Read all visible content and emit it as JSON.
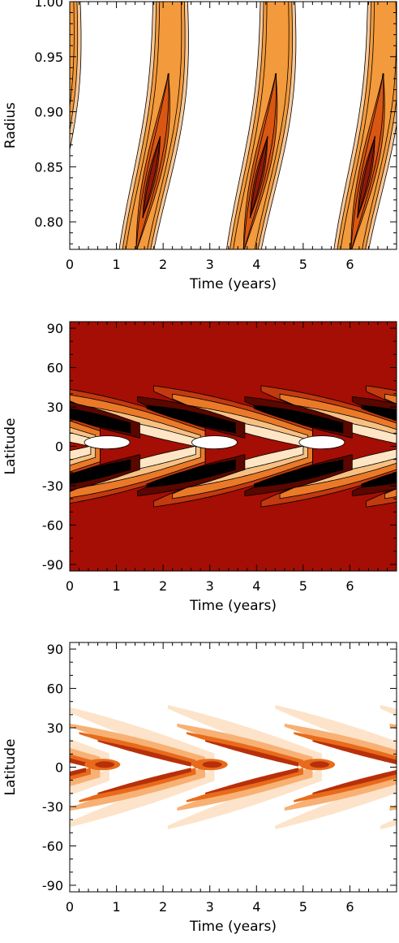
{
  "chart_data": [
    {
      "type": "heatmap",
      "title": "",
      "xlabel": "Time (years)",
      "ylabel": "Radius",
      "xlim": [
        0,
        7
      ],
      "ylim": [
        0.775,
        1.0
      ],
      "xticks": [
        0,
        1,
        2,
        3,
        4,
        5,
        6
      ],
      "yticks": [
        0.8,
        0.85,
        0.9,
        0.95,
        1.0
      ],
      "ytick_labels": [
        "0.80",
        "0.85",
        "0.90",
        "0.95",
        "1.00"
      ],
      "period": 2.3,
      "phases": [
        -0.6,
        1.7,
        4.0,
        6.3
      ],
      "peak_radius": 0.83,
      "background_color": "#ffffff",
      "colors": [
        "#ffffff",
        "#f7c89a",
        "#f39a3c",
        "#d95712",
        "#b3300f",
        "#8e1a0a"
      ],
      "grid": false
    },
    {
      "type": "heatmap",
      "title": "",
      "xlabel": "Time (years)",
      "ylabel": "Latitude",
      "xlim": [
        0,
        7
      ],
      "ylim": [
        -95,
        95
      ],
      "xticks": [
        0,
        1,
        2,
        3,
        4,
        5,
        6
      ],
      "yticks": [
        90,
        60,
        30,
        0,
        -30,
        -60,
        -90
      ],
      "ytick_labels": [
        "90",
        "60",
        "30",
        "0",
        "-30",
        "-60",
        "-90"
      ],
      "period": 2.3,
      "phases": [
        0.45,
        2.75,
        5.05
      ],
      "background_color": "#a40e04",
      "colors": [
        "#a40e04",
        "#c23a0f",
        "#ea7a28",
        "#f7c083",
        "#ffe5c4",
        "#ffffff",
        "#5a0700",
        "#000000"
      ],
      "grid": false
    },
    {
      "type": "heatmap",
      "title": "",
      "xlabel": "Time (years)",
      "ylabel": "Latitude",
      "xlim": [
        0,
        7
      ],
      "ylim": [
        -95,
        95
      ],
      "xticks": [
        0,
        1,
        2,
        3,
        4,
        5,
        6
      ],
      "yticks": [
        90,
        60,
        30,
        0,
        -30,
        -60,
        -90
      ],
      "ytick_labels": [
        "90",
        "60",
        "30",
        "0",
        "-30",
        "-60",
        "-90"
      ],
      "period": 2.3,
      "phases": [
        0.45,
        2.75,
        5.05
      ],
      "background_color": "#ffffff",
      "colors": [
        "#ffffff",
        "#fde3c9",
        "#f7b174",
        "#e86b1c",
        "#b8300a"
      ],
      "grid": false
    }
  ]
}
